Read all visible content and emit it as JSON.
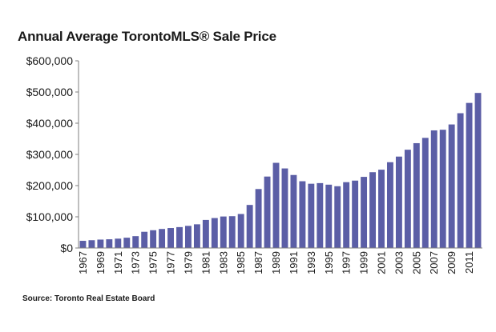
{
  "chart_data": {
    "type": "bar",
    "title": "Annual Average TorontoMLS® Sale Price",
    "source": "Source: Toronto Real Estate Board",
    "xlabel": "",
    "ylabel": "",
    "ylim": [
      0,
      600000
    ],
    "yticks": [
      0,
      100000,
      200000,
      300000,
      400000,
      500000,
      600000
    ],
    "ytick_labels": [
      "$0",
      "$100,000",
      "$200,000",
      "$300,000",
      "$400,000",
      "$500,000",
      "$600,000"
    ],
    "xtick_labels": [
      "1967",
      "1969",
      "1971",
      "1973",
      "1975",
      "1977",
      "1979",
      "1981",
      "1983",
      "1985",
      "1987",
      "1989",
      "1991",
      "1993",
      "1995",
      "1997",
      "1999",
      "2001",
      "2003",
      "2005",
      "2007",
      "2009",
      "2011"
    ],
    "grid": false,
    "legend": "none",
    "bar_color": "#5b5ea6",
    "categories": [
      "1967",
      "1968",
      "1969",
      "1970",
      "1971",
      "1972",
      "1973",
      "1974",
      "1975",
      "1976",
      "1977",
      "1978",
      "1979",
      "1980",
      "1981",
      "1982",
      "1983",
      "1984",
      "1985",
      "1986",
      "1987",
      "1988",
      "1989",
      "1990",
      "1991",
      "1992",
      "1993",
      "1994",
      "1995",
      "1996",
      "1997",
      "1998",
      "1999",
      "2000",
      "2001",
      "2002",
      "2003",
      "2004",
      "2005",
      "2006",
      "2007",
      "2008",
      "2009",
      "2010",
      "2011",
      "2012"
    ],
    "values": [
      23000,
      25000,
      27000,
      28000,
      30000,
      33000,
      38000,
      52000,
      57000,
      61000,
      64000,
      67000,
      71000,
      76000,
      90000,
      96000,
      101000,
      102000,
      109000,
      138000,
      189000,
      229000,
      273000,
      255000,
      234000,
      214000,
      206000,
      208000,
      203000,
      198000,
      211000,
      216000,
      228000,
      243000,
      251000,
      275000,
      293000,
      315000,
      336000,
      353000,
      377000,
      379000,
      396000,
      432000,
      465000,
      497000
    ]
  }
}
